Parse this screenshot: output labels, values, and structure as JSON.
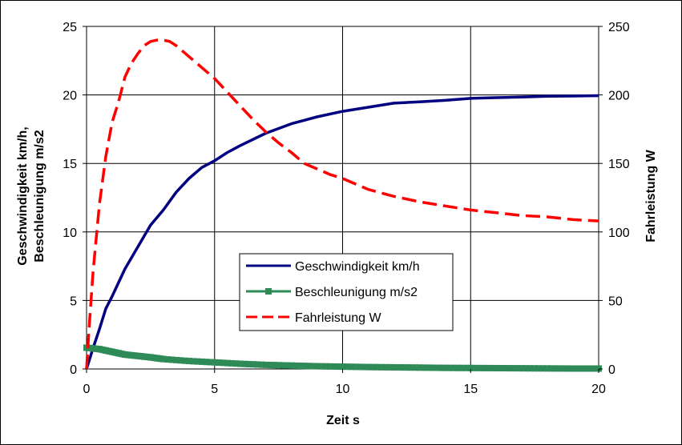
{
  "chart_data": {
    "type": "line",
    "xlabel": "Zeit s",
    "ylabel_left_line1": "Geschwindigkeit km/h,",
    "ylabel_left_line2": "Beschleunigung m/s2",
    "ylabel_right": "Fahrleistung W",
    "xlim": [
      0,
      20
    ],
    "ylim_left": [
      0,
      25
    ],
    "ylim_right": [
      0,
      250
    ],
    "x_ticks": [
      "0",
      "5",
      "10",
      "15",
      "20"
    ],
    "y_left_ticks": [
      "0",
      "5",
      "10",
      "15",
      "20",
      "25"
    ],
    "y_right_ticks": [
      "0",
      "50",
      "100",
      "150",
      "200",
      "250"
    ],
    "grid": true,
    "legend_position": "center",
    "series": [
      {
        "name": "Geschwindigkeit km/h",
        "axis": "left",
        "color": "#000080",
        "style": "solid",
        "x": [
          0,
          0.25,
          0.5,
          0.75,
          1,
          1.5,
          2,
          2.5,
          3,
          3.5,
          4,
          4.5,
          5,
          5.5,
          6,
          7,
          8,
          9,
          10,
          11,
          12,
          13,
          14,
          15,
          16,
          17,
          18,
          19,
          20
        ],
        "y": [
          0,
          1.5,
          2.9,
          4.4,
          5.3,
          7.3,
          8.9,
          10.5,
          11.6,
          12.9,
          13.9,
          14.7,
          15.2,
          15.8,
          16.3,
          17.2,
          17.9,
          18.4,
          18.8,
          19.1,
          19.4,
          19.5,
          19.6,
          19.75,
          19.8,
          19.85,
          19.9,
          19.92,
          19.95
        ]
      },
      {
        "name": "Beschleunigung m/s2",
        "axis": "left",
        "color": "#2E8B57",
        "style": "solid-square-markers",
        "x": [
          0,
          0.5,
          1,
          1.5,
          2,
          2.5,
          3,
          4,
          5,
          6,
          7,
          8,
          9,
          10,
          11,
          12,
          13,
          14,
          15,
          16,
          17,
          18,
          19,
          20
        ],
        "y": [
          1.55,
          1.45,
          1.25,
          1.05,
          0.95,
          0.85,
          0.72,
          0.58,
          0.48,
          0.38,
          0.3,
          0.25,
          0.2,
          0.17,
          0.14,
          0.12,
          0.1,
          0.08,
          0.07,
          0.06,
          0.05,
          0.04,
          0.03,
          0.03
        ]
      },
      {
        "name": "Fahrleistung W",
        "axis": "right",
        "color": "#FF0000",
        "style": "dashed",
        "x": [
          0,
          0.1,
          0.25,
          0.5,
          0.75,
          1,
          1.25,
          1.5,
          1.75,
          2,
          2.25,
          2.5,
          2.75,
          3,
          3.25,
          3.5,
          3.75,
          4,
          4.5,
          5,
          5.5,
          6,
          6.5,
          7,
          7.5,
          8,
          8.5,
          9,
          9.5,
          10,
          11,
          12,
          13,
          14,
          15,
          16,
          17,
          18,
          19,
          20
        ],
        "y": [
          0,
          30,
          70,
          120,
          155,
          180,
          195,
          213,
          223,
          230,
          236,
          239,
          240,
          240,
          239,
          236,
          232,
          228,
          220,
          212,
          202,
          192,
          182,
          173,
          165,
          158,
          150,
          146,
          142,
          139,
          131,
          126,
          122,
          119,
          116,
          114,
          112,
          111,
          109,
          108
        ]
      }
    ]
  }
}
